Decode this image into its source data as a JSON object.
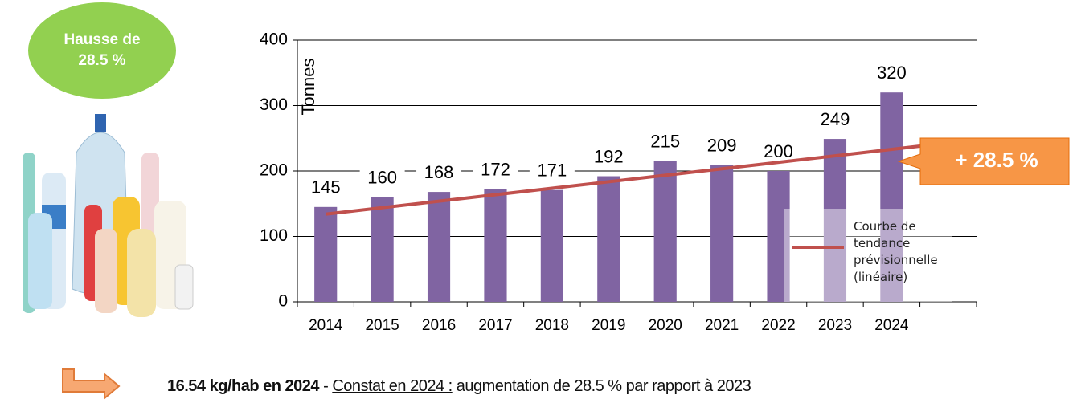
{
  "badge": "Hausse de 28.5 %",
  "chart_data": {
    "type": "bar",
    "y_label": "Tonnes",
    "categories": [
      "2014",
      "2015",
      "2016",
      "2017",
      "2018",
      "2019",
      "2020",
      "2021",
      "2022",
      "2023",
      "2024"
    ],
    "values": [
      145,
      160,
      168,
      172,
      171,
      192,
      215,
      209,
      200,
      249,
      320
    ],
    "color": "#8064a2",
    "ylim": [
      0,
      400
    ],
    "yticks": [
      0,
      100,
      200,
      300,
      400
    ],
    "grid": true,
    "trendline": {
      "name": "Courbe de tendance prévisionnelle (linéaire)",
      "color": "#c0504d",
      "values": [
        134,
        243
      ]
    },
    "callout": "+ 28.5 %"
  },
  "footer": {
    "bold": "16.54 kg/hab en 2024",
    "separator": "-",
    "underlined": "Constat en 2024 :",
    "text": "augmentation de 28.5 % par rapport à 2023"
  }
}
